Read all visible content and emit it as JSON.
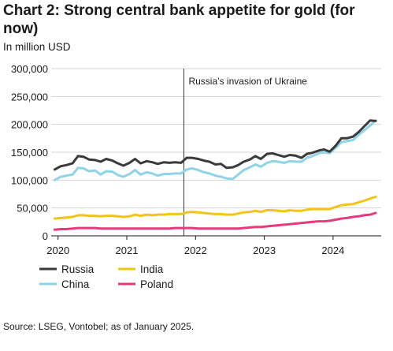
{
  "chart_data": {
    "type": "line",
    "title": "Chart 2: Strong central bank appetite for gold (for now)",
    "subtitle": "In million USD",
    "source": "Source: LSEG, Vontobel; as of January 2025.",
    "annotation": {
      "label": "Russia’s invasion of Ukraine",
      "x": 2021.83
    },
    "xlim": [
      2019.9,
      2024.7
    ],
    "ylim": [
      0,
      300000
    ],
    "x_ticks": [
      2020,
      2021,
      2022,
      2023,
      2024
    ],
    "x_tick_labels": [
      "2020",
      "2021",
      "2022",
      "2023",
      "2024"
    ],
    "y_ticks": [
      0,
      50000,
      100000,
      150000,
      200000,
      250000,
      300000
    ],
    "y_tick_labels": [
      "0",
      "50,000",
      "100,000",
      "150,000",
      "200,000",
      "250,000",
      "300,000"
    ],
    "grid": "horizontal",
    "legend_position": "bottom",
    "x": [
      2019.95,
      2020.04,
      2020.12,
      2020.21,
      2020.29,
      2020.37,
      2020.45,
      2020.54,
      2020.62,
      2020.7,
      2020.79,
      2020.87,
      2020.95,
      2021.04,
      2021.12,
      2021.2,
      2021.29,
      2021.37,
      2021.45,
      2021.54,
      2021.62,
      2021.7,
      2021.79,
      2021.87,
      2021.95,
      2022.04,
      2022.12,
      2022.2,
      2022.29,
      2022.37,
      2022.45,
      2022.54,
      2022.62,
      2022.7,
      2022.79,
      2022.87,
      2022.95,
      2023.04,
      2023.12,
      2023.2,
      2023.29,
      2023.37,
      2023.45,
      2023.54,
      2023.62,
      2023.7,
      2023.79,
      2023.87,
      2023.95,
      2024.04,
      2024.12,
      2024.2,
      2024.29,
      2024.37,
      2024.45,
      2024.54,
      2024.62
    ],
    "series": [
      {
        "name": "Russia",
        "color": "#3a3a3a",
        "values": [
          119000,
          125000,
          127000,
          130000,
          143000,
          142000,
          137000,
          136000,
          133000,
          138000,
          135000,
          130000,
          126000,
          131000,
          138000,
          130000,
          134000,
          132000,
          129000,
          132000,
          131000,
          132000,
          131000,
          140000,
          140000,
          138000,
          135000,
          133000,
          128000,
          129000,
          122000,
          123000,
          127000,
          133000,
          137000,
          143000,
          138000,
          147000,
          148000,
          145000,
          142000,
          145000,
          144000,
          140000,
          147000,
          149000,
          153000,
          155000,
          151000,
          162000,
          175000,
          175000,
          178000,
          186000,
          196000,
          207000,
          206000
        ]
      },
      {
        "name": "China",
        "color": "#8fd3e8",
        "values": [
          100000,
          106000,
          108000,
          110000,
          122000,
          121000,
          116000,
          117000,
          110000,
          116000,
          115000,
          109000,
          106000,
          111000,
          118000,
          110000,
          114000,
          112000,
          108000,
          111000,
          111000,
          112000,
          112000,
          119000,
          121000,
          118000,
          114000,
          112000,
          108000,
          106000,
          103000,
          102000,
          110000,
          118000,
          123000,
          128000,
          124000,
          131000,
          134000,
          133000,
          131000,
          134000,
          133000,
          133000,
          140000,
          143000,
          148000,
          150000,
          148000,
          158000,
          168000,
          170000,
          172000,
          181000,
          189000,
          198000,
          207000
        ]
      },
      {
        "name": "India",
        "color": "#f2c418",
        "values": [
          31000,
          32000,
          33000,
          34000,
          37000,
          37000,
          36000,
          36000,
          35000,
          36000,
          36000,
          35000,
          34000,
          35000,
          38000,
          36000,
          38000,
          37000,
          38000,
          38000,
          39000,
          39000,
          39000,
          42000,
          43000,
          42000,
          41000,
          40000,
          39000,
          39000,
          38000,
          38000,
          40000,
          42000,
          43000,
          45000,
          43000,
          46000,
          46000,
          45000,
          44000,
          46000,
          45000,
          45000,
          47000,
          48000,
          48000,
          48000,
          48000,
          52000,
          55000,
          56000,
          57000,
          60000,
          63000,
          67000,
          70000
        ]
      },
      {
        "name": "Poland",
        "color": "#e83a7a",
        "values": [
          11000,
          12000,
          12000,
          13000,
          14000,
          14000,
          14000,
          14000,
          13000,
          13000,
          13000,
          13000,
          13000,
          13000,
          13000,
          13000,
          13000,
          13000,
          13000,
          13000,
          13000,
          14000,
          14000,
          14000,
          14000,
          13000,
          13000,
          13000,
          13000,
          13000,
          13000,
          13000,
          13000,
          14000,
          15000,
          16000,
          16000,
          17000,
          18000,
          19000,
          20000,
          21000,
          22000,
          23000,
          24000,
          25000,
          26000,
          26000,
          27000,
          29000,
          31000,
          32000,
          34000,
          35000,
          37000,
          38000,
          41000
        ]
      }
    ]
  }
}
